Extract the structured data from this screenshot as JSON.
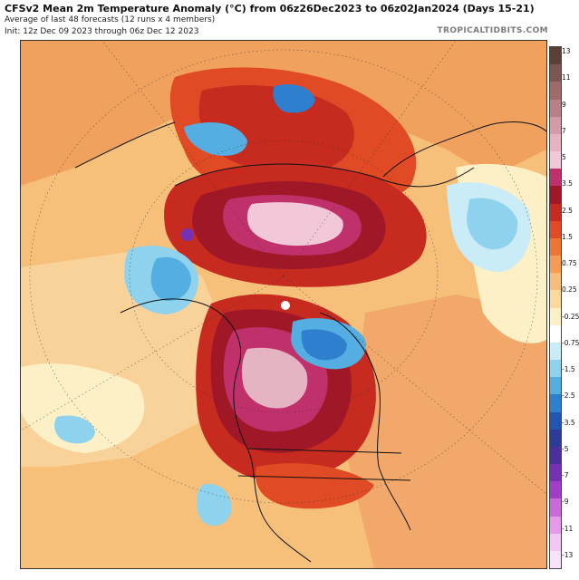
{
  "header": {
    "title": "CFSv2 Mean 2m Temperature Anomaly (°C) from 06z26Dec2023 to 06z02Jan2024 (Days 15-21)",
    "subtitle": "Average of last 48 forecasts (12 runs x 4 members)",
    "init": "Init: 12z Dec 09 2023 through 06z Dec 12 2023",
    "brand": "TROPICALTIDBITS.COM"
  },
  "colorbar": {
    "labels": [
      "13",
      "11",
      "9",
      "7",
      "5",
      "3.5",
      "2.5",
      "1.5",
      "0.75",
      "0.25",
      "-0.25",
      "-0.75",
      "-1.5",
      "-2.5",
      "-3.5",
      "-5",
      "-7",
      "-9",
      "-11",
      "-13"
    ],
    "colors": [
      "#5b4036",
      "#7d5650",
      "#9c6b6a",
      "#b97f86",
      "#d49aa7",
      "#e6b3c3",
      "#f2c8d8",
      "#c0306a",
      "#a01828",
      "#c72a1f",
      "#e04a24",
      "#ee7534",
      "#f59c52",
      "#f8bd78",
      "#fbd99b",
      "#fdf0c7",
      "#ffffff",
      "#c9ecf6",
      "#8fd2ee",
      "#55aee2",
      "#2f7fcf",
      "#2055b4",
      "#2d3b98",
      "#4b2f9e",
      "#7531b5",
      "#a03ec9",
      "#c86ad9",
      "#e49ae8",
      "#f3c6f3",
      "#f9e1f9"
    ]
  }
}
